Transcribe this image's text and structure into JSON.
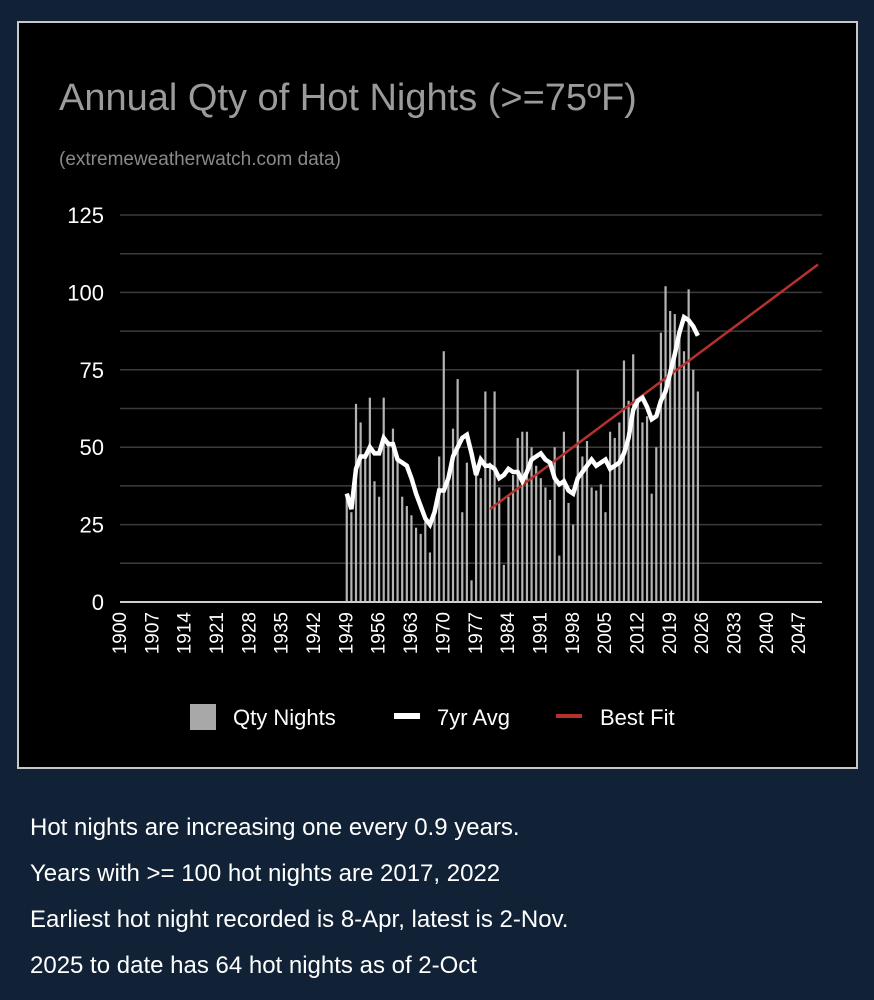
{
  "chart_data": {
    "type": "bar",
    "title": "Annual Qty of Hot Nights (>=75ºF)",
    "subtitle": "(extremeweatherwatch.com data)",
    "xlabel": "",
    "ylabel": "",
    "xlim": [
      1900,
      2050
    ],
    "ylim": [
      0,
      125
    ],
    "y_ticks": [
      "0",
      "25",
      "50",
      "75",
      "100",
      "125"
    ],
    "x_ticks": [
      "1900",
      "1907",
      "1914",
      "1921",
      "1928",
      "1935",
      "1942",
      "1949",
      "1956",
      "1963",
      "1970",
      "1977",
      "1984",
      "1991",
      "1998",
      "2005",
      "2012",
      "2019",
      "2026",
      "2033",
      "2040",
      "2047"
    ],
    "grid": true,
    "legend_position": "bottom",
    "x": [
      1948,
      1949,
      1950,
      1951,
      1952,
      1953,
      1954,
      1955,
      1956,
      1957,
      1958,
      1959,
      1960,
      1961,
      1962,
      1963,
      1964,
      1965,
      1966,
      1967,
      1968,
      1969,
      1970,
      1971,
      1972,
      1973,
      1974,
      1975,
      1976,
      1977,
      1978,
      1979,
      1980,
      1981,
      1982,
      1983,
      1984,
      1985,
      1986,
      1987,
      1988,
      1989,
      1990,
      1991,
      1992,
      1993,
      1994,
      1995,
      1996,
      1997,
      1998,
      1999,
      2000,
      2001,
      2002,
      2003,
      2004,
      2005,
      2006,
      2007,
      2008,
      2009,
      2010,
      2011,
      2012,
      2013,
      2014,
      2015,
      2016,
      2017,
      2018,
      2019,
      2020,
      2021,
      2022,
      2023,
      2024
    ],
    "series": [
      {
        "name": "Qty Nights",
        "type": "bar",
        "color": "#b4b4b4",
        "values": [
          35,
          29,
          64,
          58,
          47,
          66,
          39,
          34,
          66,
          52,
          56,
          46,
          34,
          31,
          28,
          24,
          22,
          26,
          16,
          30,
          47,
          81,
          40,
          56,
          72,
          29,
          45,
          7,
          42,
          40,
          68,
          45,
          68,
          37,
          12,
          34,
          41,
          53,
          55,
          55,
          50,
          44,
          40,
          37,
          33,
          50,
          15,
          55,
          32,
          25,
          75,
          47,
          52,
          37,
          36,
          38,
          29,
          55,
          53,
          58,
          78,
          65,
          80,
          64,
          58,
          60,
          35,
          50,
          87,
          102,
          94,
          93,
          86,
          81,
          101,
          75,
          68
        ]
      },
      {
        "name": "7yr Avg",
        "type": "line",
        "color": "#ffffff",
        "values": [
          35,
          30,
          43,
          47,
          47,
          50,
          48,
          48,
          53,
          51,
          51,
          46,
          45,
          44,
          40,
          35,
          31,
          27,
          25,
          29,
          36,
          36,
          40,
          47,
          50,
          53,
          54,
          48,
          41,
          46,
          44,
          44,
          43,
          40,
          41,
          43,
          42,
          42,
          39,
          42,
          46,
          47,
          48,
          46,
          45,
          40,
          38,
          39,
          36,
          35,
          40,
          42,
          44,
          46,
          44,
          45,
          46,
          43,
          44,
          45,
          48,
          53,
          62,
          65,
          66,
          63,
          59,
          60,
          65,
          68,
          74,
          80,
          87,
          92,
          91,
          89,
          86
        ]
      },
      {
        "name": "Best Fit",
        "type": "line",
        "color": "#b5312c",
        "points": [
          [
            1979,
            30
          ],
          [
            2050,
            109
          ]
        ]
      }
    ]
  },
  "notes": [
    "Hot nights are increasing one every 0.9 years.",
    "Years with >= 100 hot nights are 2017, 2022",
    "Earliest hot night recorded is 8-Apr, latest is 2-Nov.",
    "2025 to date has 64 hot nights as of 2-Oct"
  ]
}
